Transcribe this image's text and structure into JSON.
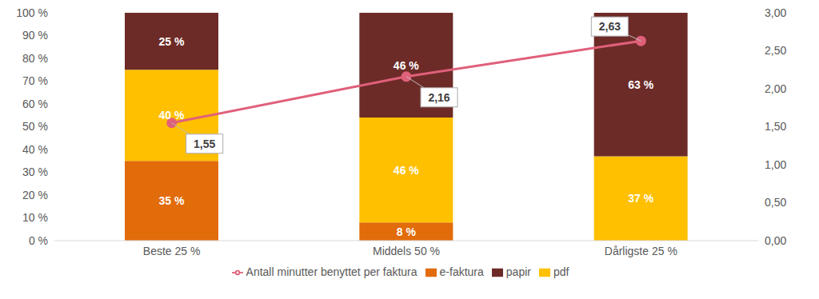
{
  "chart_data": {
    "type": "bar",
    "stacked": true,
    "data_labels": true,
    "categories": [
      "Beste 25 %",
      "Middels 50 %",
      "Dårligste 25 %"
    ],
    "series": [
      {
        "name": "e-faktura",
        "color": "#e26b0a",
        "values": [
          35,
          8,
          null
        ],
        "value_labels": [
          "35 %",
          "8 %",
          null
        ]
      },
      {
        "name": "pdf",
        "color": "#ffc000",
        "values": [
          40,
          46,
          37
        ],
        "value_labels": [
          "40 %",
          "46 %",
          "37 %"
        ]
      },
      {
        "name": "papir",
        "color": "#6d2b27",
        "values": [
          25,
          46,
          63
        ],
        "value_labels": [
          "25 %",
          "46 %",
          "63 %"
        ]
      },
      {
        "name": "Antall minutter benyttet per faktura",
        "type": "line",
        "axis": "y2",
        "color": "#e0607a",
        "marker": "circle",
        "values": [
          1.55,
          2.16,
          2.63
        ],
        "value_labels": [
          "1,55",
          "2,16",
          "2,63"
        ]
      }
    ],
    "ylim": [
      0,
      100
    ],
    "yticks": [
      {
        "value": 0,
        "label": "0 %"
      },
      {
        "value": 10,
        "label": "10 %"
      },
      {
        "value": 20,
        "label": "20 %"
      },
      {
        "value": 30,
        "label": "30 %"
      },
      {
        "value": 40,
        "label": "40 %"
      },
      {
        "value": 50,
        "label": "50 %"
      },
      {
        "value": 60,
        "label": "60 %"
      },
      {
        "value": 70,
        "label": "70 %"
      },
      {
        "value": 80,
        "label": "80 %"
      },
      {
        "value": 90,
        "label": "90 %"
      },
      {
        "value": 100,
        "label": "100 %"
      }
    ],
    "y2lim": [
      0,
      3
    ],
    "y2ticks": [
      {
        "value": 0,
        "label": "0,00"
      },
      {
        "value": 0.5,
        "label": "0,50"
      },
      {
        "value": 1,
        "label": "1,00"
      },
      {
        "value": 1.5,
        "label": "1,50"
      },
      {
        "value": 2,
        "label": "2,00"
      },
      {
        "value": 2.5,
        "label": "2,50"
      },
      {
        "value": 3,
        "label": "3,00"
      }
    ],
    "grid": false,
    "legend": "bottom"
  }
}
